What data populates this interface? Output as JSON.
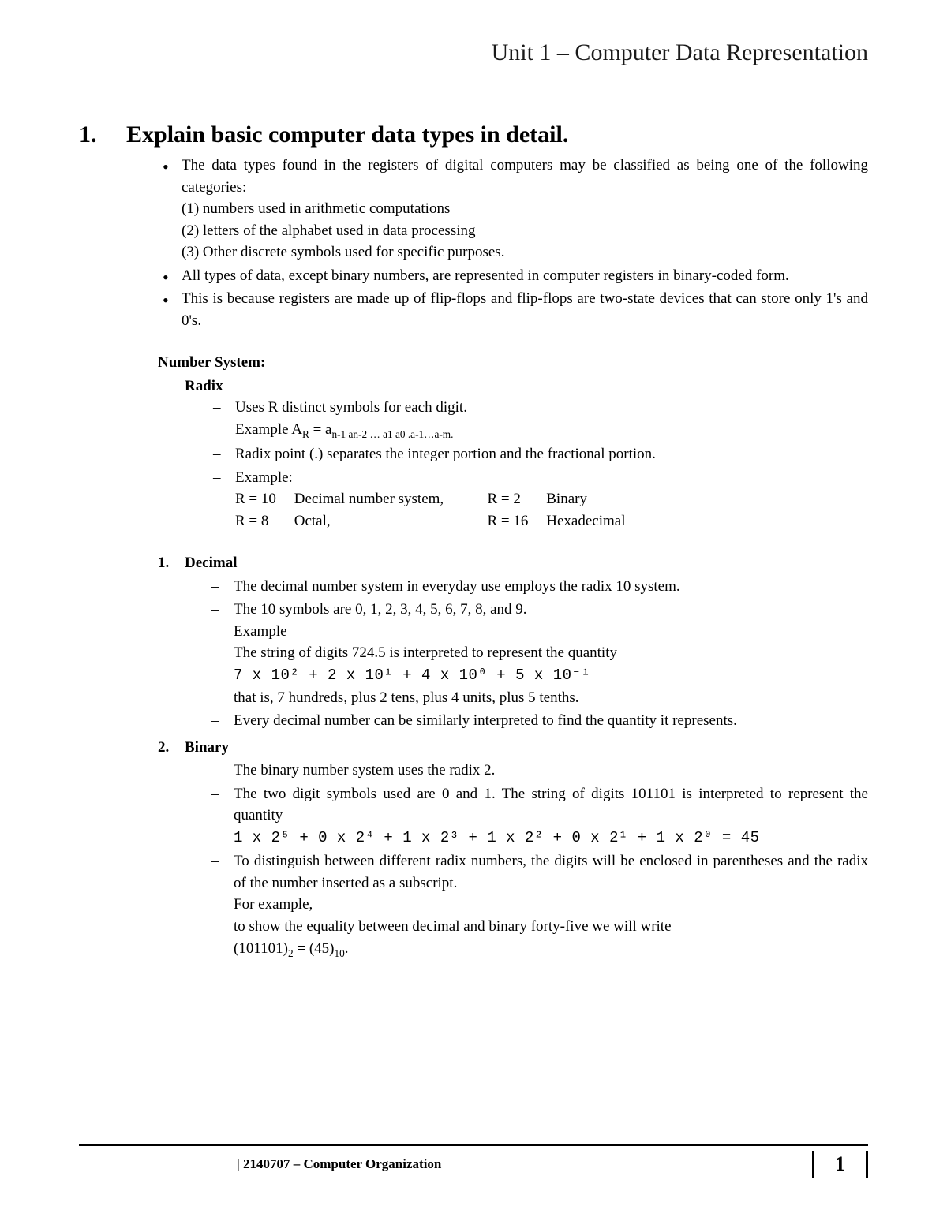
{
  "header": {
    "title": "Unit 1 – Computer Data Representation"
  },
  "question": {
    "number": "1.",
    "title": "Explain basic computer data types in detail."
  },
  "intro_bullets": [
    "The data types found in the registers of digital computers may be classified as being one of the following categories:",
    "All types of data, except binary numbers, are represented in computer registers in binary-coded form.",
    "This is because registers are made up of flip-flops and flip-flops are two-state devices that can store only 1's and 0's."
  ],
  "intro_sub": [
    "(1) numbers used in arithmetic computations",
    "(2) letters of the alphabet used in data processing",
    "(3) Other discrete symbols used for specific purposes."
  ],
  "number_system_head": "Number System:",
  "radix": {
    "title": "Radix",
    "d1": "Uses R distinct symbols for each digit.",
    "d1_ex_prefix": "Example A",
    "d1_ex_sub": "R",
    "d1_ex_eq": " = a",
    "d1_ex_rest": "n-1 an-2 … a1 a0 .a-1…a-m.",
    "d2": "Radix point (.) separates the integer portion and the fractional portion.",
    "d3": "Example:",
    "grid": {
      "r1c1": "R = 10",
      "r1c2": "Decimal number system,",
      "r1c3": "R =   2",
      "r1c4": "Binary",
      "r2c1": "R =   8",
      "r2c2": "Octal,",
      "r2c3": "R = 16",
      "r2c4": "Hexadecimal"
    }
  },
  "decimal": {
    "num": "1.",
    "title": "Decimal",
    "d1": "The decimal number system in everyday use employs the radix 10 system.",
    "d2": "The 10 symbols are 0, 1, 2, 3, 4, 5, 6, 7, 8, and 9.",
    "d2_ex": "Example",
    "d2_ex2": "The string of digits 724.5 is interpreted to represent the quantity",
    "d2_formula": "7 x 10² + 2 x 10¹ + 4 x 10⁰ + 5 x 10⁻¹",
    "d2_after": "that is, 7 hundreds, plus 2 tens, plus 4 units, plus 5 tenths.",
    "d3": "Every decimal number can be similarly interpreted to find the quantity it represents."
  },
  "binary": {
    "num": "2.",
    "title": "Binary",
    "d1": "The binary number system uses the radix 2.",
    "d2": "The two digit symbols used are 0 and 1. The string of digits 101101 is interpreted to represent the quantity",
    "d2_formula": "1 x 2⁵ + 0 x 2⁴ + 1 x 2³ + 1 x 2² + 0 x 2¹ + 1 x 2⁰ = 45",
    "d3": "To distinguish between different radix numbers, the digits will be enclosed in parentheses and the radix of the number inserted as a subscript.",
    "d3_a": " For example,",
    "d3_b": "to show the equality between decimal and binary forty-five we will write",
    "d3_c_pre": "(101101)",
    "d3_c_sub1": "2",
    "d3_c_mid": " = (45)",
    "d3_c_sub2": "10",
    "d3_c_end": "."
  },
  "footer": {
    "label": "| 2140707 – Computer Organization",
    "page": "1"
  }
}
